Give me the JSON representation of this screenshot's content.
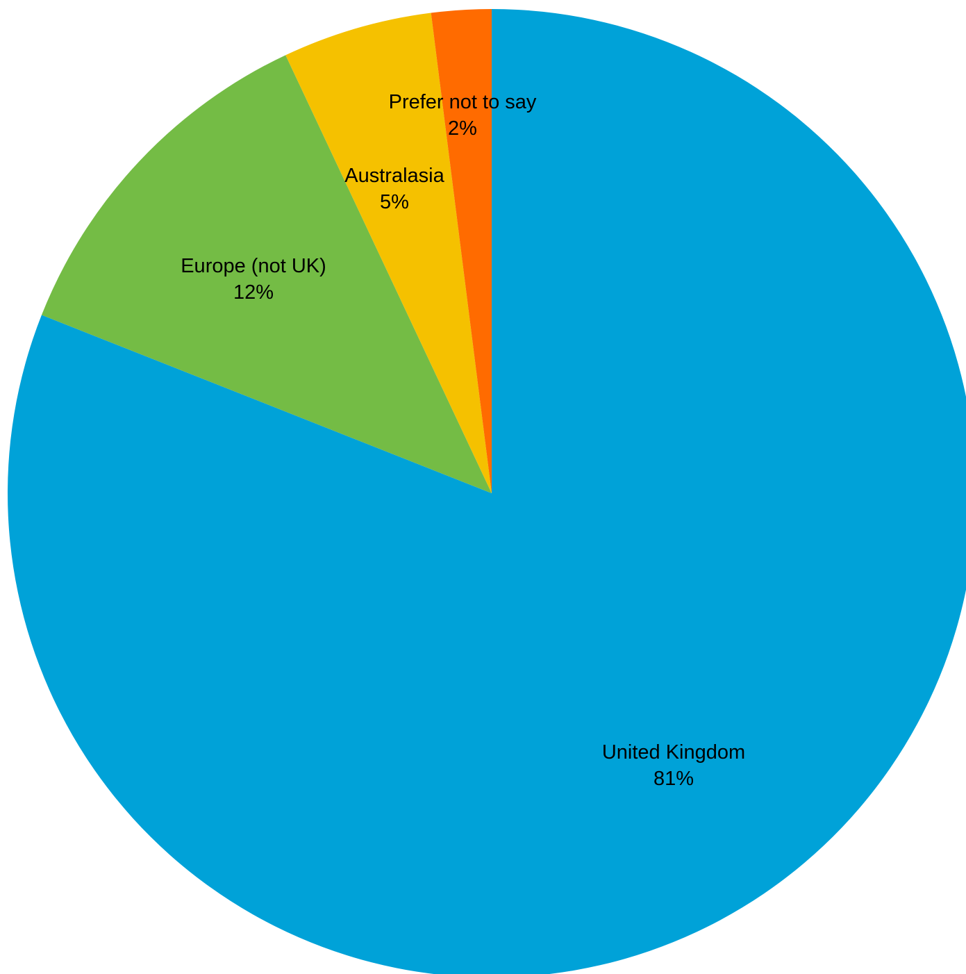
{
  "chart_data": {
    "type": "pie",
    "title": "",
    "slices": [
      {
        "label": "United Kingdom",
        "value": 81,
        "display": "81%",
        "color": "#00A2D8"
      },
      {
        "label": "Europe (not UK)",
        "value": 12,
        "display": "12%",
        "color": "#74BC45"
      },
      {
        "label": "Australasia",
        "value": 5,
        "display": "5%",
        "color": "#F5C100"
      },
      {
        "label": "Prefer not to say",
        "value": 2,
        "display": "2%",
        "color": "#FF6B00"
      }
    ],
    "start": "top",
    "direction": "clockwise",
    "legend": "none",
    "data_labels": "on-slice"
  }
}
